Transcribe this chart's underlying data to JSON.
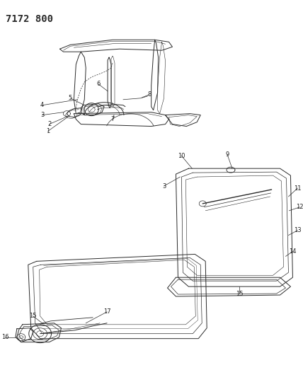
{
  "title": "7172 800",
  "title_fontsize": 10,
  "title_fontweight": "bold",
  "background_color": "#ffffff",
  "line_color": "#2a2a2a",
  "label_color": "#222222",
  "fig_width": 4.28,
  "fig_height": 5.33
}
